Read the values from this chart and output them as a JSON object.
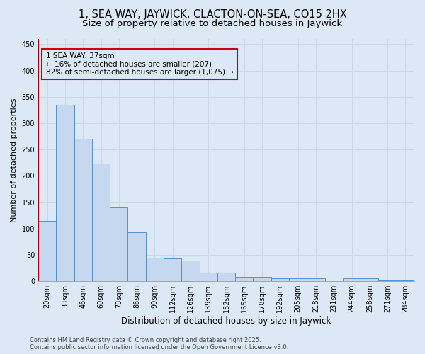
{
  "title": "1, SEA WAY, JAYWICK, CLACTON-ON-SEA, CO15 2HX",
  "subtitle": "Size of property relative to detached houses in Jaywick",
  "xlabel": "Distribution of detached houses by size in Jaywick",
  "ylabel": "Number of detached properties",
  "categories": [
    "20sqm",
    "33sqm",
    "46sqm",
    "60sqm",
    "73sqm",
    "86sqm",
    "99sqm",
    "112sqm",
    "126sqm",
    "139sqm",
    "152sqm",
    "165sqm",
    "178sqm",
    "192sqm",
    "205sqm",
    "218sqm",
    "231sqm",
    "244sqm",
    "258sqm",
    "271sqm",
    "284sqm"
  ],
  "values": [
    115,
    335,
    270,
    223,
    140,
    93,
    44,
    43,
    39,
    16,
    16,
    9,
    9,
    5,
    5,
    5,
    0,
    5,
    6,
    1,
    1
  ],
  "bar_color": "#c5d8f0",
  "bar_edge_color": "#5b8fc9",
  "background_color": "#dce8f5",
  "grid_color": "#c8d8e8",
  "vline_x_index": 0,
  "vline_color": "#aa0000",
  "annotation_text_line1": "1 SEA WAY: 37sqm",
  "annotation_text_line2": "← 16% of detached houses are smaller (207)",
  "annotation_text_line3": "82% of semi-detached houses are larger (1,075) →",
  "annotation_box_color": "#cc0000",
  "ylim": [
    0,
    460
  ],
  "yticks": [
    0,
    50,
    100,
    150,
    200,
    250,
    300,
    350,
    400,
    450
  ],
  "footer_text": "Contains HM Land Registry data © Crown copyright and database right 2025.\nContains public sector information licensed under the Open Government Licence v3.0.",
  "title_fontsize": 10.5,
  "subtitle_fontsize": 9.5,
  "xlabel_fontsize": 8.5,
  "ylabel_fontsize": 8,
  "tick_fontsize": 7,
  "footer_fontsize": 6,
  "annotation_fontsize": 7.5
}
